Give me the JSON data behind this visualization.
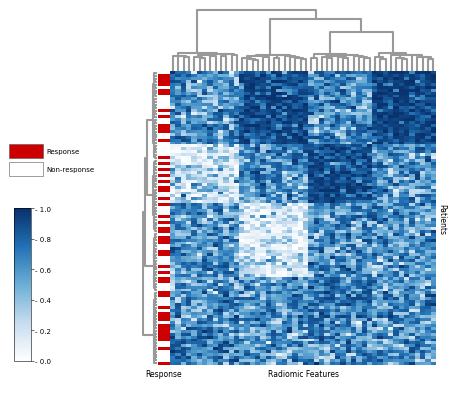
{
  "n_patients": 100,
  "n_features": 50,
  "response_color": "#CC0000",
  "non_response_color": "#FFFFFF",
  "dendrogram_color": "#999999",
  "background_color": "#FFFFFF",
  "legend_response_label": "Response",
  "legend_non_response_label": "Non-response",
  "colorbar_ticks": [
    0.0,
    0.2,
    0.4,
    0.6,
    0.8,
    1.0
  ],
  "xlabel_response": "Response",
  "xlabel_radiomic": "Radiomic Features",
  "ylabel_right": "Patients",
  "seed": 7
}
